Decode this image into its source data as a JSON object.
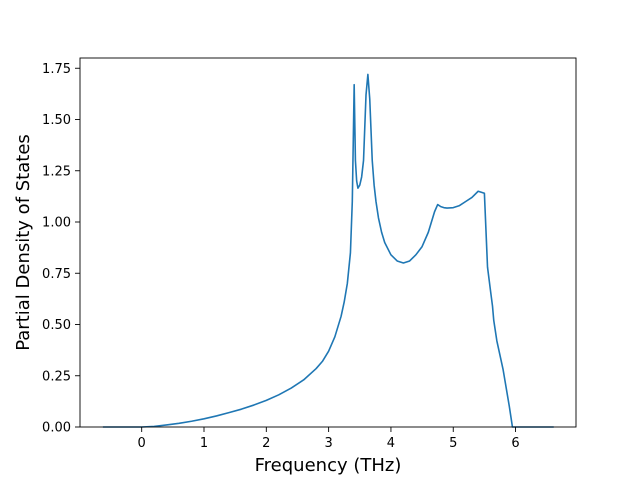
{
  "chart_data": {
    "type": "line",
    "title": "",
    "xlabel": "Frequency (THz)",
    "ylabel": "Partial Density of States",
    "xlim": [
      -0.99,
      6.97
    ],
    "ylim": [
      0.0,
      1.8
    ],
    "xticks": [
      0,
      1,
      2,
      3,
      4,
      5,
      6
    ],
    "xtick_labels": [
      "0",
      "1",
      "2",
      "3",
      "4",
      "5",
      "6"
    ],
    "yticks": [
      0.0,
      0.25,
      0.5,
      0.75,
      1.0,
      1.25,
      1.5,
      1.75
    ],
    "ytick_labels": [
      "0.00",
      "0.25",
      "0.50",
      "0.75",
      "1.00",
      "1.25",
      "1.50",
      "1.75"
    ],
    "grid": false,
    "legend": "none",
    "series": [
      {
        "color": "#1f77b4",
        "x": [
          -0.61,
          -0.3,
          0.0,
          0.2,
          0.4,
          0.6,
          0.8,
          1.0,
          1.2,
          1.4,
          1.6,
          1.8,
          2.0,
          2.2,
          2.4,
          2.6,
          2.8,
          2.9,
          3.0,
          3.1,
          3.2,
          3.25,
          3.3,
          3.35,
          3.38,
          3.41,
          3.43,
          3.45,
          3.47,
          3.5,
          3.53,
          3.56,
          3.6,
          3.63,
          3.66,
          3.7,
          3.73,
          3.76,
          3.8,
          3.85,
          3.9,
          4.0,
          4.1,
          4.2,
          4.3,
          4.4,
          4.5,
          4.6,
          4.7,
          4.75,
          4.8,
          4.85,
          4.9,
          5.0,
          5.1,
          5.2,
          5.3,
          5.4,
          5.5,
          5.55,
          5.6,
          5.63,
          5.65,
          5.7,
          5.8,
          5.9,
          5.95,
          5.98,
          6.0,
          6.3,
          6.6
        ],
        "y": [
          0.0,
          0.0,
          0.0,
          0.003,
          0.01,
          0.018,
          0.028,
          0.04,
          0.054,
          0.07,
          0.087,
          0.107,
          0.13,
          0.157,
          0.19,
          0.23,
          0.285,
          0.32,
          0.37,
          0.44,
          0.54,
          0.61,
          0.7,
          0.85,
          1.1,
          1.67,
          1.3,
          1.2,
          1.165,
          1.18,
          1.22,
          1.3,
          1.62,
          1.72,
          1.6,
          1.3,
          1.18,
          1.1,
          1.02,
          0.95,
          0.9,
          0.84,
          0.81,
          0.8,
          0.81,
          0.84,
          0.88,
          0.95,
          1.05,
          1.085,
          1.075,
          1.07,
          1.068,
          1.07,
          1.08,
          1.1,
          1.12,
          1.15,
          1.14,
          0.78,
          0.66,
          0.59,
          0.52,
          0.42,
          0.28,
          0.1,
          0.0,
          0.0,
          0.0,
          0.0,
          0.0
        ]
      }
    ]
  }
}
